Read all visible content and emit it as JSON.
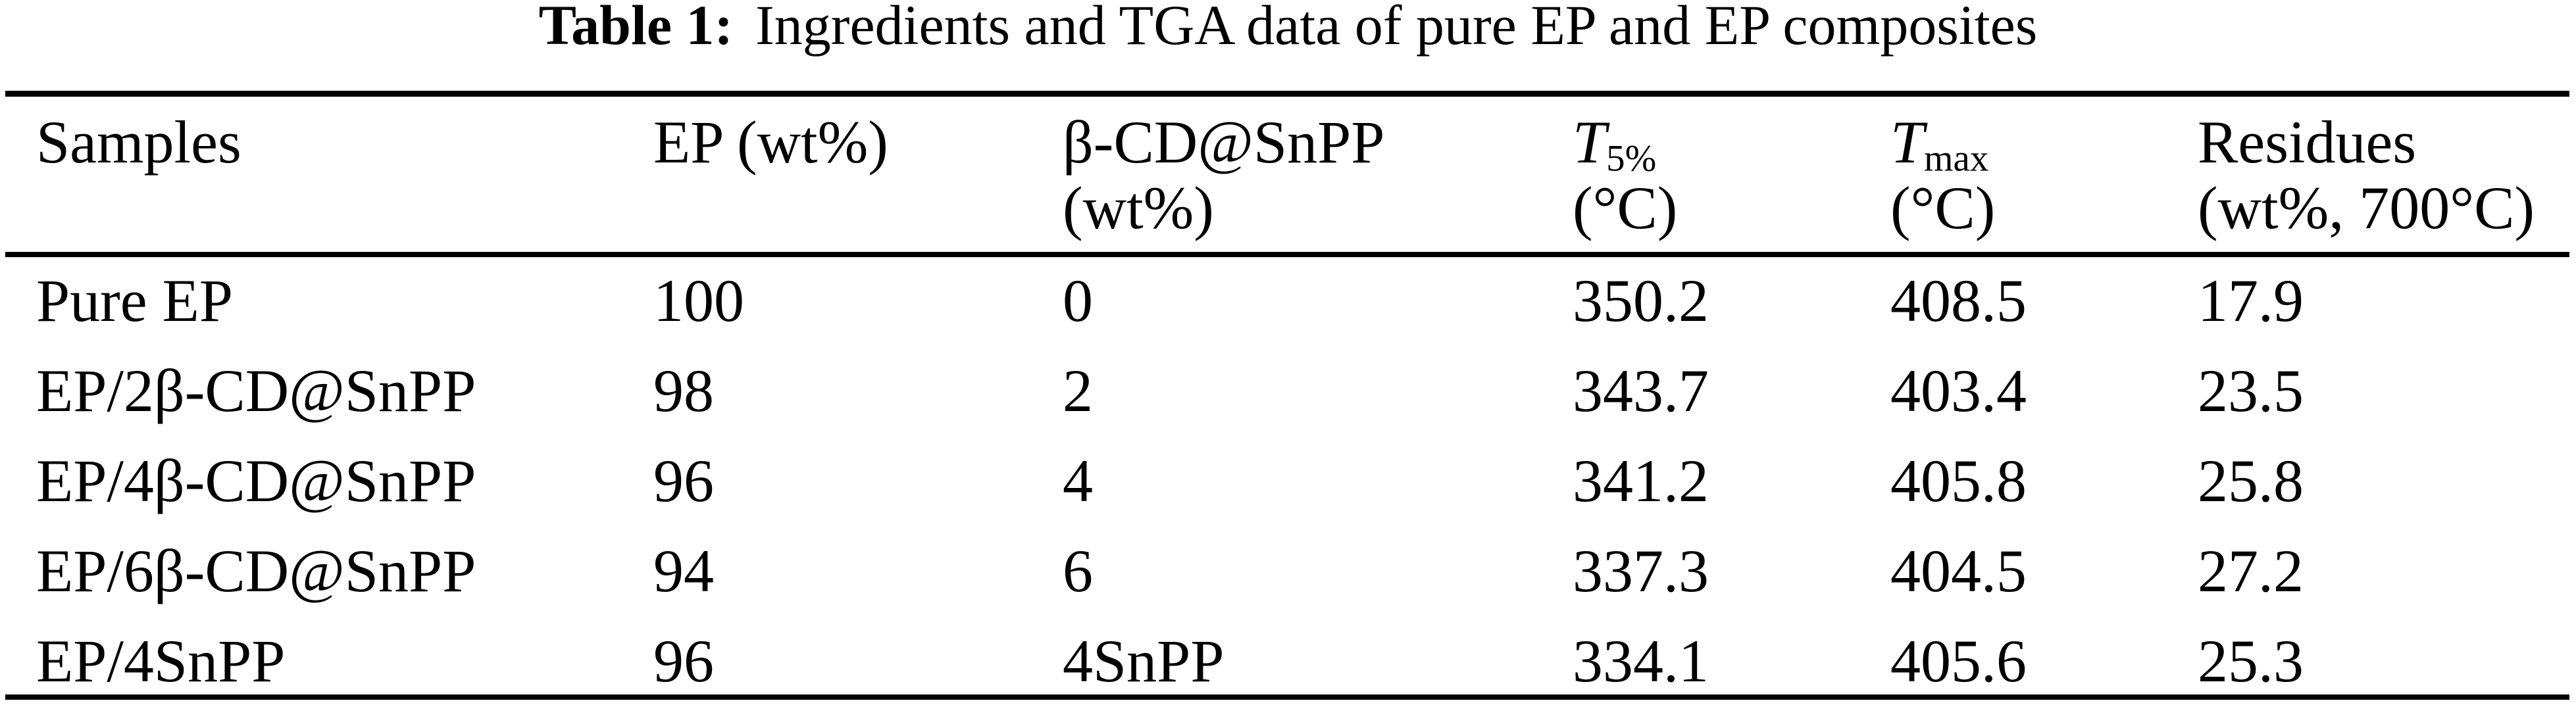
{
  "caption": {
    "label": "Table 1:",
    "text": "Ingredients and TGA data of pure EP and EP composites"
  },
  "table": {
    "columns": [
      {
        "main": "Samples",
        "sub": "",
        "line2": ""
      },
      {
        "main": "EP (wt%)",
        "sub": "",
        "line2": ""
      },
      {
        "main": "β-CD@SnPP",
        "sub": "",
        "line2": "(wt%)"
      },
      {
        "main": "T",
        "sub": "5%",
        "line2": "(°C)"
      },
      {
        "main": "T",
        "sub": "max",
        "line2": "(°C)"
      },
      {
        "main": "Residues",
        "sub": "",
        "line2": "(wt%, 700°C)"
      }
    ],
    "rows": [
      [
        "Pure EP",
        "100",
        "0",
        "350.2",
        "408.5",
        "17.9"
      ],
      [
        "EP/2β-CD@SnPP",
        "98",
        "2",
        "343.7",
        "403.4",
        "23.5"
      ],
      [
        "EP/4β-CD@SnPP",
        "96",
        "4",
        "341.2",
        "405.8",
        "25.8"
      ],
      [
        "EP/6β-CD@SnPP",
        "94",
        "6",
        "337.3",
        "404.5",
        "27.2"
      ],
      [
        "EP/4SnPP",
        "96",
        "4SnPP",
        "334.1",
        "405.6",
        "25.3"
      ]
    ],
    "colors": {
      "text": "#000000",
      "background": "#ffffff",
      "rule": "#000000"
    }
  }
}
